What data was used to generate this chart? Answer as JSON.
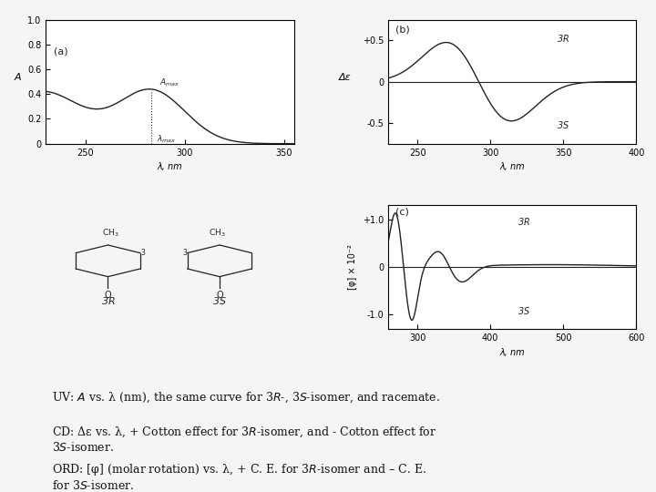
{
  "background_color": "#f0f0f0",
  "panel_a": {
    "label": "(a)",
    "xlabel": "λ, nm",
    "ylabel": "A",
    "xlim": [
      230,
      355
    ],
    "ylim": [
      0,
      1.0
    ],
    "yticks": [
      0,
      0.2,
      0.4,
      0.6,
      0.8,
      1.0
    ],
    "xticks": [
      250,
      300,
      350
    ],
    "peak_x": 283,
    "peak_y": 0.43
  },
  "panel_b": {
    "label": "(b)",
    "xlabel": "λ, nm",
    "ylabel": "Δε",
    "xlim": [
      230,
      400
    ],
    "ylim": [
      -0.75,
      0.75
    ],
    "yticks": [
      -0.5,
      0,
      0.5
    ],
    "yticklabels": [
      "-0.5",
      "0",
      "+0.5"
    ],
    "xticks": [
      250,
      300,
      350,
      400
    ]
  },
  "panel_c": {
    "label": "(c)",
    "xlabel": "λ, nm",
    "ylabel": "[φ] × 10⁻²",
    "xlim": [
      260,
      600
    ],
    "ylim": [
      -1.3,
      1.3
    ],
    "yticks": [
      -1.0,
      0,
      1.0
    ],
    "yticklabels": [
      "-1.0",
      "0",
      "+1.0"
    ],
    "xticks": [
      300,
      400,
      500,
      600
    ]
  },
  "line_color": "#222222",
  "text_color": "#111111"
}
